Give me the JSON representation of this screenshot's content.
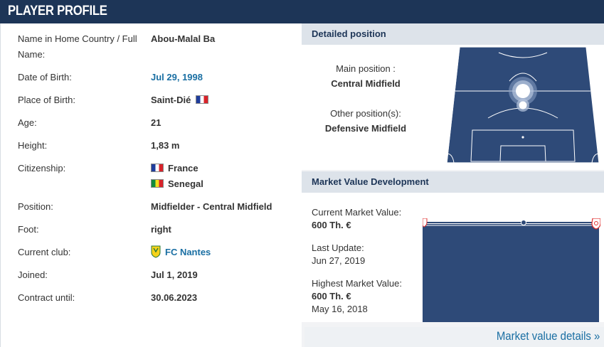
{
  "header": {
    "title": "PLAYER PROFILE"
  },
  "profile": {
    "rows": [
      {
        "label": "Name in Home Country / Full Name:",
        "value": "Abou-Malal Ba"
      },
      {
        "label": "Date of Birth:",
        "value": "Jul 29, 1998"
      },
      {
        "label": "Place of Birth:",
        "value": "Saint-Dié"
      },
      {
        "label": "Age:",
        "value": "21"
      },
      {
        "label": "Height:",
        "value": "1,83 m"
      },
      {
        "label": "Citizenship:",
        "value": "France",
        "value2": "Senegal"
      },
      {
        "label": "Position:",
        "value": "Midfielder - Central Midfield"
      },
      {
        "label": "Foot:",
        "value": "right"
      },
      {
        "label": "Current club:",
        "value": "FC Nantes"
      },
      {
        "label": "Joined:",
        "value": "Jul 1, 2019"
      },
      {
        "label": "Contract until:",
        "value": "30.06.2023"
      }
    ]
  },
  "position_panel": {
    "title": "Detailed position",
    "main_label": "Main position :",
    "main_value": "Central Midfield",
    "other_label": "Other position(s):",
    "other_value": "Defensive Midfield",
    "pitch_color": "#2e4a78"
  },
  "market_panel": {
    "title": "Market Value Development",
    "current_label": "Current Market Value:",
    "current_value": "600 Th. €",
    "update_label": "Last Update:",
    "update_value": "Jun 27, 2019",
    "highest_label": "Highest Market Value:",
    "highest_value": "600 Th. €",
    "highest_date": "May 16, 2018",
    "chart_color": "#2e4a78"
  },
  "footer": {
    "link": "Market value details »"
  },
  "icons": {
    "flag_france": "flag-france-icon",
    "flag_senegal": "flag-senegal-icon",
    "club": "fc-nantes-badge-icon"
  },
  "colors": {
    "header_bg": "#1d3557",
    "link": "#1a6fa3",
    "panel_head": "#dde3ea"
  }
}
